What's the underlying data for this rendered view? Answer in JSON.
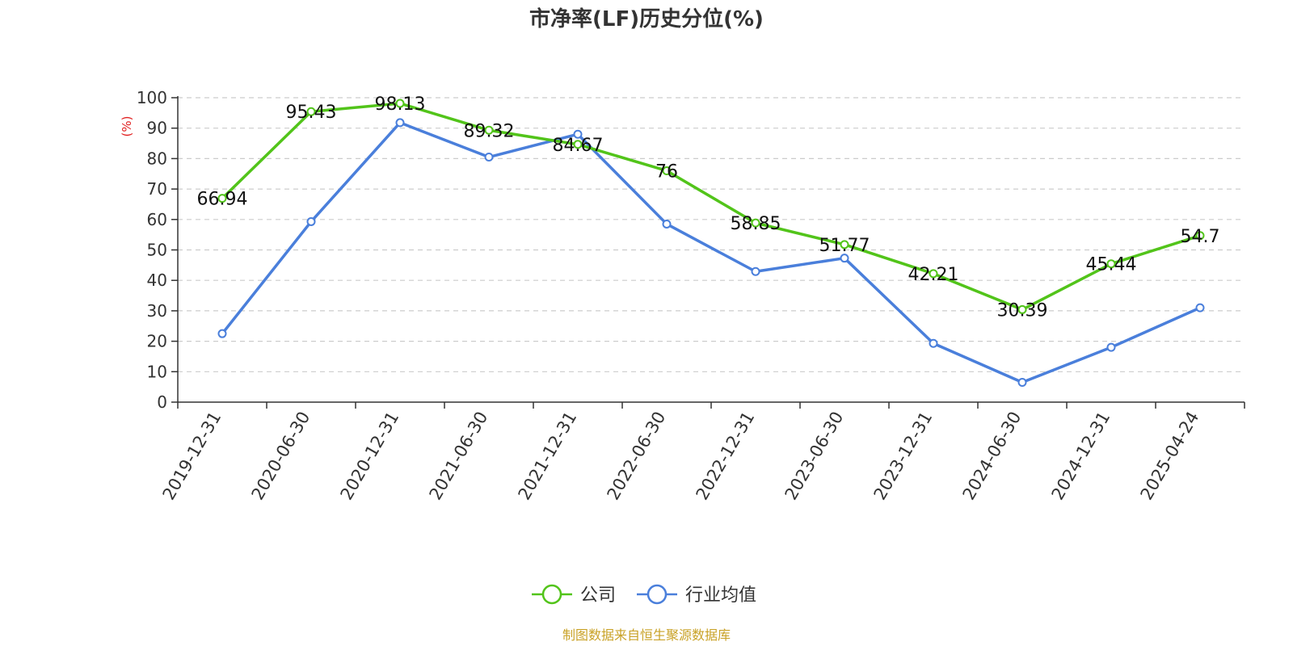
{
  "chart_data": {
    "type": "line",
    "title": "市净率(LF)历史分位(%)",
    "ylabel": "(%)",
    "ylim": [
      0,
      100
    ],
    "yticks": [
      0,
      10,
      20,
      30,
      40,
      50,
      60,
      70,
      80,
      90,
      100
    ],
    "categories": [
      "2019-12-31",
      "2020-06-30",
      "2020-12-31",
      "2021-06-30",
      "2021-12-31",
      "2022-06-30",
      "2022-12-31",
      "2023-06-30",
      "2023-12-31",
      "2024-06-30",
      "2024-12-31",
      "2025-04-24"
    ],
    "series": [
      {
        "name": "公司",
        "color": "#52c41a",
        "values": [
          66.94,
          95.43,
          98.13,
          89.32,
          84.67,
          76,
          58.85,
          51.77,
          42.21,
          30.39,
          45.44,
          54.7
        ],
        "labels": [
          "66.94",
          "95.43",
          "98.13",
          "89.32",
          "84.67",
          "76",
          "58.85",
          "51.77",
          "42.21",
          "30.39",
          "45.44",
          "54.7"
        ]
      },
      {
        "name": "行业均值",
        "color": "#4a7fdb",
        "values": [
          22.5,
          59.3,
          91.8,
          80.5,
          88.0,
          58.5,
          42.9,
          47.3,
          19.3,
          6.5,
          18.0,
          31.0
        ]
      }
    ],
    "grid": true,
    "legend": "bottom-center"
  },
  "source": {
    "text": "制图数据来自恒生聚源数据库",
    "color": "#c9a227"
  },
  "axis_label_color": "#e02020"
}
